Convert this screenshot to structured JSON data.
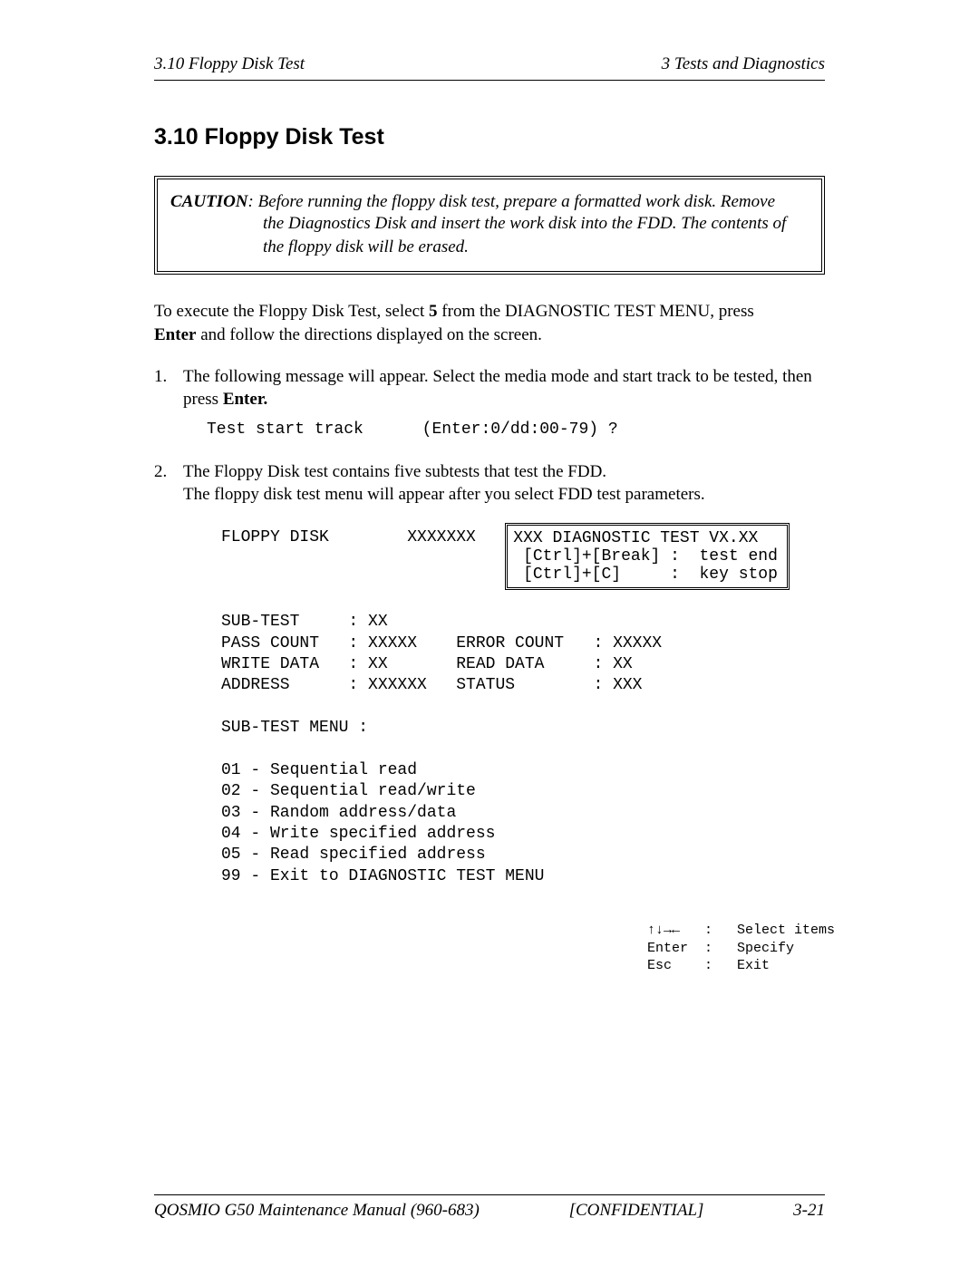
{
  "header": {
    "left": "3.10 Floppy Disk Test",
    "right": "3 Tests and Diagnostics"
  },
  "section_title": "3.10  Floppy Disk Test",
  "caution": {
    "label": "CAUTION",
    "line_first": ":   Before running the floppy disk test, prepare a formatted work disk.  Remove",
    "line2": "the Diagnostics Disk and insert the work disk into the FDD. The contents of",
    "line3": "the floppy disk will be erased."
  },
  "intro": {
    "pre": "To execute the Floppy Disk Test, select ",
    "bold1": "5",
    "mid": " from the DIAGNOSTIC TEST MENU, press ",
    "bold2": "Enter",
    "post": " and follow the directions displayed on the screen."
  },
  "steps": {
    "s1": {
      "num": "1.",
      "text_pre": "The following message will appear. Select the media mode and start track to be tested, then press ",
      "text_bold": "Enter.",
      "mono": "Test start track      (Enter:0/dd:00-79) ?"
    },
    "s2": {
      "num": "2.",
      "text": "The Floppy Disk test contains five subtests that test the FDD.\nThe floppy disk test menu will appear after you select FDD test parameters."
    }
  },
  "diag": {
    "top_left": "FLOPPY DISK        XXXXXXX   ",
    "top_right": "XXX DIAGNOSTIC TEST VX.XX\n [Ctrl]+[Break] :  test end\n [Ctrl]+[C]     :  key stop",
    "body": "SUB-TEST     : XX\nPASS COUNT   : XXXXX    ERROR COUNT   : XXXXX\nWRITE DATA   : XX       READ DATA     : XX\nADDRESS      : XXXXXX   STATUS        : XXX\n\nSUB-TEST MENU :\n\n01 - Sequential read\n02 - Sequential read/write\n03 - Random address/data\n04 - Write specified address\n05 - Read specified address\n99 - Exit to DIAGNOSTIC TEST MENU",
    "nav": "↑↓→←   :   Select items\nEnter  :   Specify\nEsc    :   Exit"
  },
  "footer": {
    "left": "QOSMIO G50 Maintenance Manual (960-683)",
    "center": "[CONFIDENTIAL]",
    "right": "3-21"
  }
}
